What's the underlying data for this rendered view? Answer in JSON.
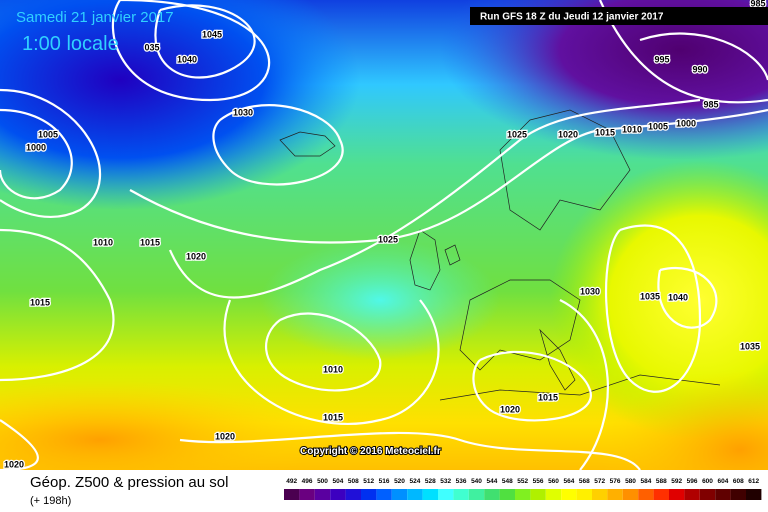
{
  "header": {
    "date": "Samedi 21 janvier 2017",
    "time": "1:00 locale",
    "run": "Run GFS 18 Z du Jeudi 12 janvier 2017"
  },
  "copyright": "Copyright © 2016 Meteociel.fr",
  "footer": {
    "title": "Géop. Z500 & pression au sol",
    "lead": "(+ 198h)"
  },
  "isobar_labels": [
    "1045",
    "035",
    "1040",
    "1030",
    "1005",
    "1000",
    "1025",
    "1020",
    "1015",
    "1010",
    "1005",
    "1000",
    "995",
    "990",
    "985",
    "985",
    "1010",
    "1015",
    "1020",
    "1025",
    "1015",
    "1030",
    "1035",
    "1040",
    "1035",
    "1010",
    "1015",
    "1020",
    "1020",
    "1015",
    "1020"
  ],
  "legend": {
    "levels": [
      492,
      496,
      500,
      504,
      508,
      512,
      516,
      520,
      524,
      528,
      532,
      536,
      540,
      544,
      548,
      552,
      556,
      560,
      564,
      568,
      572,
      576,
      580,
      584,
      588,
      592,
      596,
      600,
      604,
      608,
      612
    ],
    "colors": [
      "#4b0050",
      "#6a0080",
      "#5a00a0",
      "#3c00c0",
      "#2010d8",
      "#0030f0",
      "#0060ff",
      "#0090ff",
      "#00b8ff",
      "#00e0ff",
      "#40ffff",
      "#40ffd0",
      "#40f0a0",
      "#40e070",
      "#50e040",
      "#80f020",
      "#b0f000",
      "#e0ff00",
      "#ffff00",
      "#fff000",
      "#ffd000",
      "#ffb000",
      "#ff9000",
      "#ff6000",
      "#ff3000",
      "#e00000",
      "#b00000",
      "#800000",
      "#600000",
      "#400000",
      "#200000"
    ]
  }
}
